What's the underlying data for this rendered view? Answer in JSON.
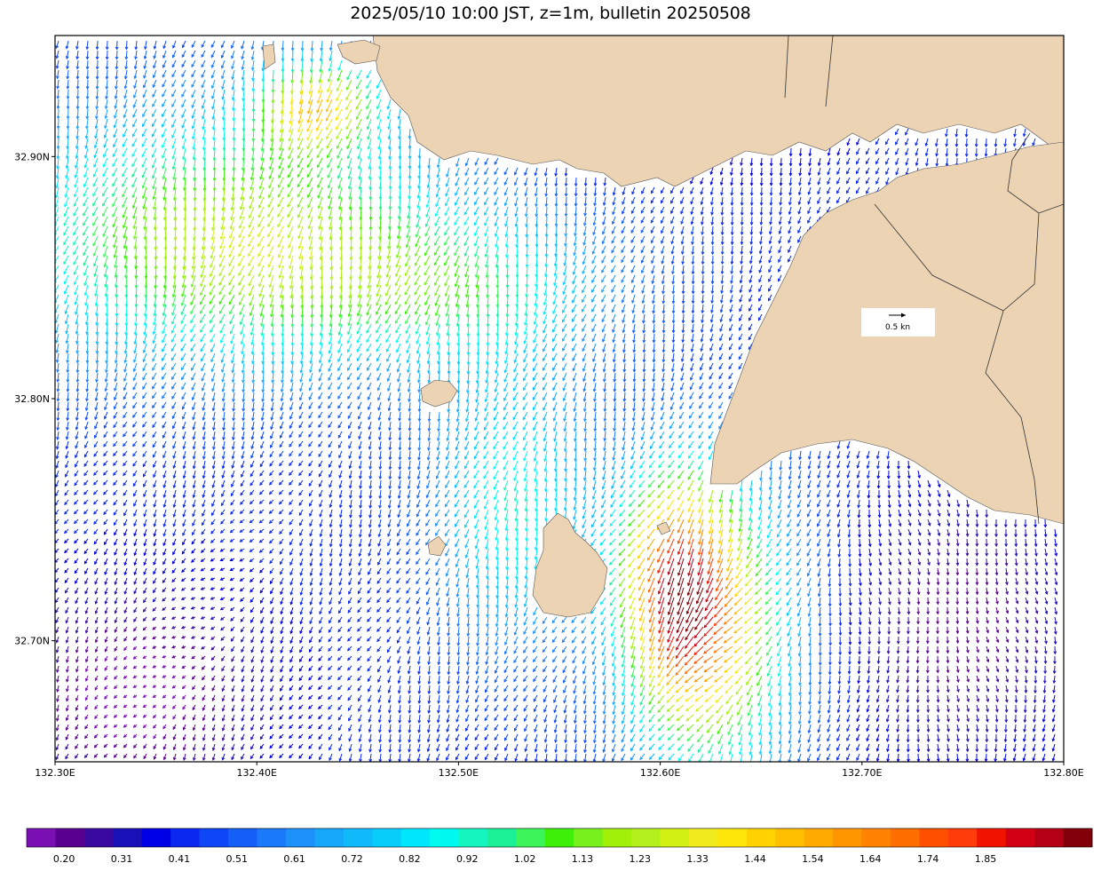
{
  "title": "2025/05/10 10:00 JST, z=1m, bulletin 20250508",
  "map": {
    "lon_range": [
      132.3,
      132.8
    ],
    "lat_range": [
      32.65,
      32.95
    ],
    "x_ticks": [
      {
        "value": 132.3,
        "label": "132.30E"
      },
      {
        "value": 132.4,
        "label": "132.40E"
      },
      {
        "value": 132.5,
        "label": "132.50E"
      },
      {
        "value": 132.6,
        "label": "132.60E"
      },
      {
        "value": 132.7,
        "label": "132.70E"
      },
      {
        "value": 132.8,
        "label": "132.80E"
      }
    ],
    "y_ticks": [
      {
        "value": 32.9,
        "label": "32.90N"
      },
      {
        "value": 32.8,
        "label": "32.80N"
      },
      {
        "value": 32.7,
        "label": "32.70N"
      }
    ],
    "scale_arrow": {
      "label": "0.5 kn",
      "speed": 0.5
    },
    "land_color": "#ebd3b4",
    "sea_color": "#ffffff"
  },
  "colorbar": {
    "colors": [
      "#7a0fb4",
      "#5a0090",
      "#3a0aa0",
      "#1a10b8",
      "#0000e6",
      "#0a28f0",
      "#0f46f5",
      "#1460f7",
      "#1a78fa",
      "#1e90fa",
      "#16a6fa",
      "#10bafa",
      "#08ccfa",
      "#00e6fa",
      "#00faf0",
      "#14f5c0",
      "#1cf096",
      "#3cf55a",
      "#3cf00a",
      "#78f01e",
      "#a0f00a",
      "#b4f01e",
      "#d2f014",
      "#f0eb1e",
      "#ffe60a",
      "#ffd200",
      "#ffbe00",
      "#ffaa00",
      "#ff9600",
      "#ff8200",
      "#ff6e00",
      "#ff5000",
      "#ff3c0a",
      "#f01400",
      "#d20014",
      "#b40014",
      "#82000a"
    ],
    "labels": [
      "0.20",
      "0.31",
      "0.41",
      "0.51",
      "0.61",
      "0.72",
      "0.82",
      "0.92",
      "1.02",
      "1.13",
      "1.23",
      "1.33",
      "1.44",
      "1.54",
      "1.64",
      "1.74",
      "1.85"
    ]
  }
}
